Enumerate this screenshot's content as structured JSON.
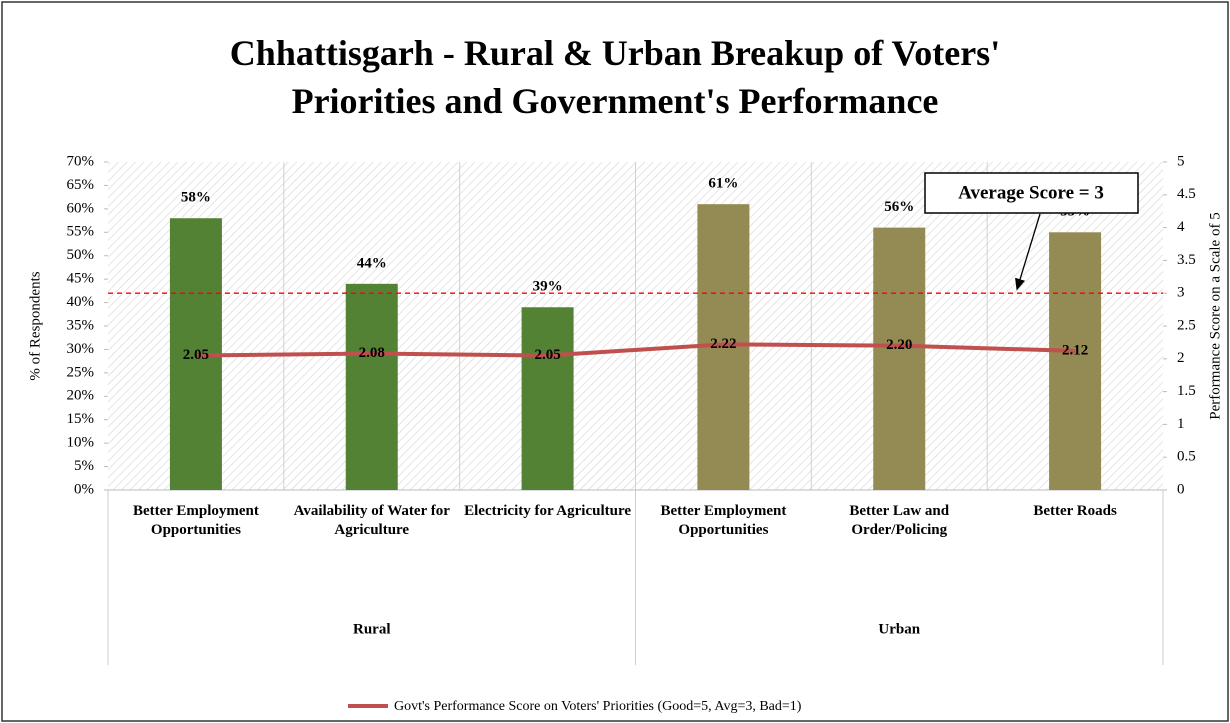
{
  "chart_data": {
    "type": "bar_line",
    "title": "Chhattisgarh - Rural & Urban Breakup of Voters' Priorities and Government's Performance",
    "categories": [
      "Better Employment Opportunities",
      "Availability of Water for Agriculture",
      "Electricity for Agriculture",
      "Better Employment Opportunities",
      "Better Law and Order/Policing",
      "Better Roads"
    ],
    "groups": [
      "Rural",
      "Rural",
      "Rural",
      "Urban",
      "Urban",
      "Urban"
    ],
    "bars": {
      "values": [
        58,
        44,
        39,
        61,
        56,
        55
      ],
      "value_labels": [
        "58%",
        "44%",
        "39%",
        "61%",
        "56%",
        "55%"
      ],
      "colors": [
        "#548235",
        "#548235",
        "#548235",
        "#948a54",
        "#948a54",
        "#948a54"
      ]
    },
    "line": {
      "name": "Govt's Performance Score on Voters' Priorities (Good=5, Avg=3, Bad=1)",
      "color": "#c0504d",
      "axis": "y2",
      "values": [
        2.05,
        2.08,
        2.05,
        2.22,
        2.2,
        2.12
      ],
      "value_labels": [
        "2.05",
        "2.08",
        "2.05",
        "2.22",
        "2.20",
        "2.12"
      ]
    },
    "reference_line": {
      "value": 3,
      "axis": "y2",
      "label": "Average Score = 3",
      "color": "#ff0000"
    },
    "ylabel": "% of Respondents",
    "y2label": "Performance Score on a Scale of 5",
    "ylim": [
      0,
      70
    ],
    "yticks": [
      {
        "value": 0,
        "label": "0%"
      },
      {
        "value": 5,
        "label": "5%"
      },
      {
        "value": 10,
        "label": "10%"
      },
      {
        "value": 15,
        "label": "15%"
      },
      {
        "value": 20,
        "label": "20%"
      },
      {
        "value": 25,
        "label": "25%"
      },
      {
        "value": 30,
        "label": "30%"
      },
      {
        "value": 35,
        "label": "35%"
      },
      {
        "value": 40,
        "label": "40%"
      },
      {
        "value": 45,
        "label": "45%"
      },
      {
        "value": 50,
        "label": "50%"
      },
      {
        "value": 55,
        "label": "55%"
      },
      {
        "value": 60,
        "label": "60%"
      },
      {
        "value": 65,
        "label": "65%"
      },
      {
        "value": 70,
        "label": "70%"
      }
    ],
    "y2lim": [
      0,
      5
    ],
    "y2ticks": [
      0,
      0.5,
      1,
      1.5,
      2,
      2.5,
      3,
      3.5,
      4,
      4.5,
      5
    ],
    "legend": "bottom"
  }
}
